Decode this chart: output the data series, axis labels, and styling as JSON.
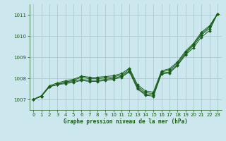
{
  "title": "Graphe pression niveau de la mer (hPa)",
  "background_color": "#cce8ee",
  "grid_color": "#aacccc",
  "line_color": "#1a5c1a",
  "xlim": [
    -0.5,
    23.5
  ],
  "ylim": [
    1006.5,
    1011.5
  ],
  "yticks": [
    1007,
    1008,
    1009,
    1010,
    1011
  ],
  "xticks": [
    0,
    1,
    2,
    3,
    4,
    5,
    6,
    7,
    8,
    9,
    10,
    11,
    12,
    13,
    14,
    15,
    16,
    17,
    18,
    19,
    20,
    21,
    22,
    23
  ],
  "line1": [
    1007.0,
    1007.15,
    1007.6,
    1007.7,
    1007.75,
    1007.8,
    1007.9,
    1007.85,
    1007.85,
    1007.9,
    1007.95,
    1008.05,
    1008.3,
    1007.5,
    1007.2,
    1007.15,
    1008.2,
    1008.25,
    1008.6,
    1009.1,
    1009.45,
    1009.95,
    1010.25,
    1011.05
  ],
  "line2": [
    1007.0,
    1007.15,
    1007.6,
    1007.7,
    1007.8,
    1007.85,
    1007.95,
    1007.9,
    1007.9,
    1007.95,
    1008.0,
    1008.1,
    1008.35,
    1007.55,
    1007.25,
    1007.2,
    1008.25,
    1008.3,
    1008.65,
    1009.15,
    1009.55,
    1010.05,
    1010.35,
    1011.05
  ],
  "line3": [
    1007.0,
    1007.15,
    1007.6,
    1007.72,
    1007.82,
    1007.9,
    1008.05,
    1007.98,
    1007.98,
    1008.02,
    1008.07,
    1008.15,
    1008.42,
    1007.62,
    1007.32,
    1007.28,
    1008.3,
    1008.38,
    1008.72,
    1009.22,
    1009.6,
    1010.12,
    1010.42,
    1011.05
  ],
  "line4": [
    1007.0,
    1007.18,
    1007.65,
    1007.78,
    1007.88,
    1007.95,
    1008.1,
    1008.05,
    1008.05,
    1008.08,
    1008.12,
    1008.22,
    1008.48,
    1007.7,
    1007.4,
    1007.35,
    1008.35,
    1008.45,
    1008.78,
    1009.28,
    1009.65,
    1010.18,
    1010.48,
    1011.05
  ]
}
